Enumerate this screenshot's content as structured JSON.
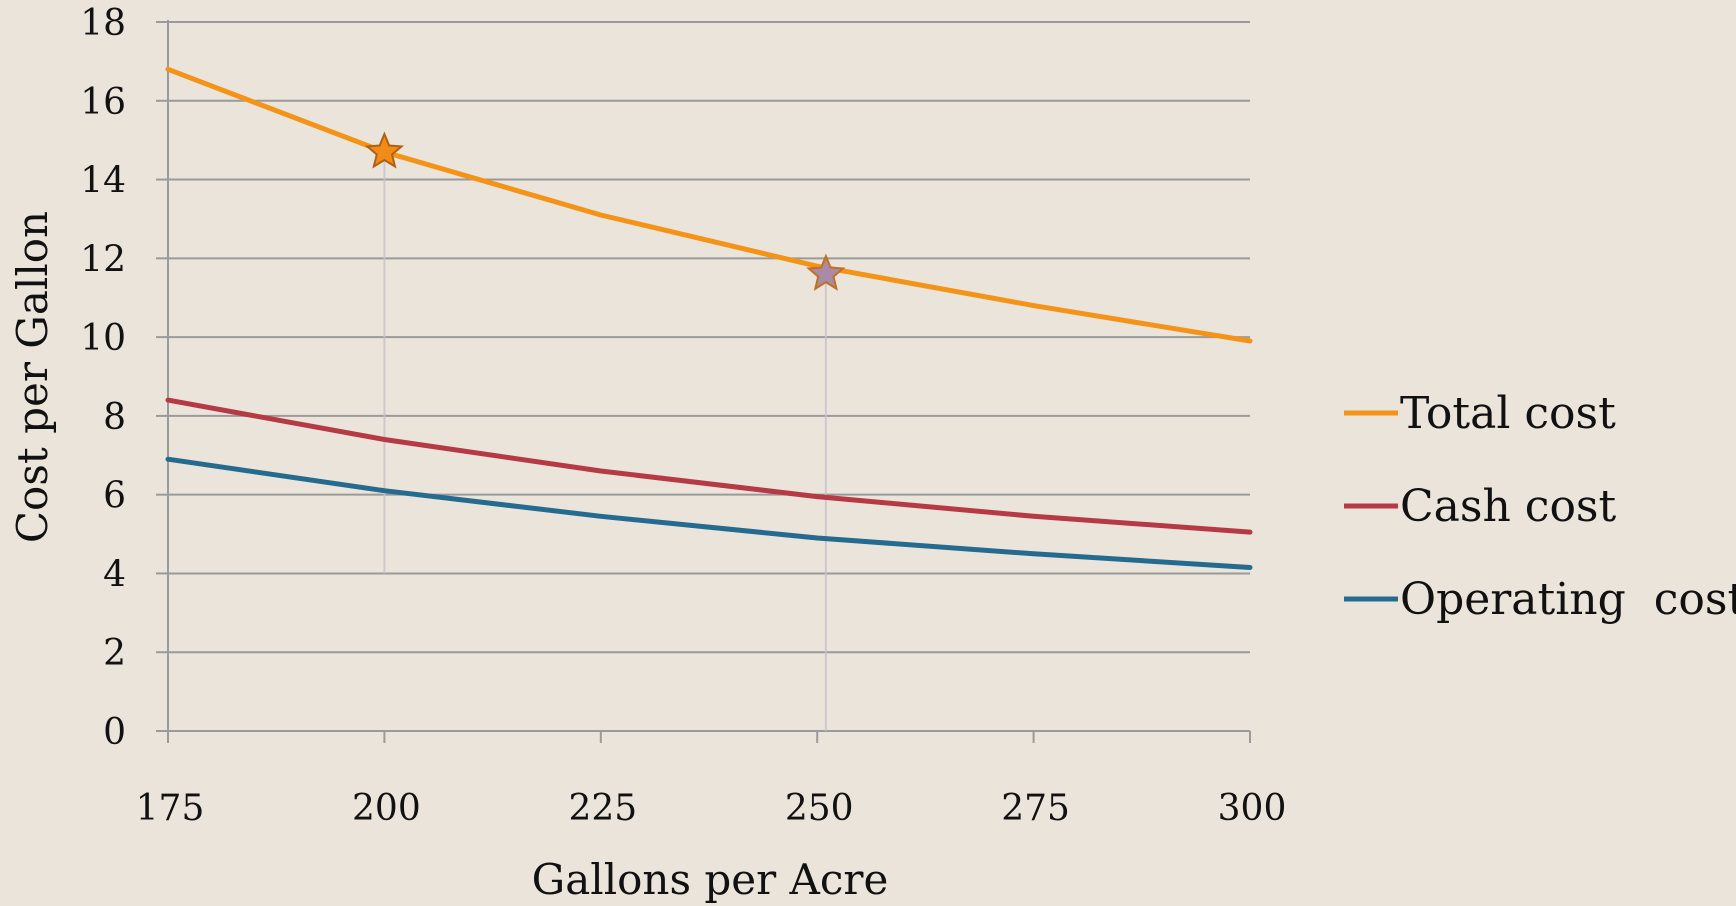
{
  "chart_data": {
    "type": "line",
    "xlabel": "Gallons per Acre",
    "ylabel": "Cost per Gallon",
    "x": [
      175,
      200,
      225,
      250,
      275,
      300
    ],
    "x_ticks": [
      "175",
      "200",
      "225",
      "250",
      "275",
      "300"
    ],
    "y_ticks": [
      "0",
      "2",
      "4",
      "6",
      "8",
      "10",
      "12",
      "14",
      "16",
      "18"
    ],
    "ylim": [
      0,
      18
    ],
    "xlim": [
      175,
      300
    ],
    "grid": true,
    "legend_position": "right",
    "series": [
      {
        "name": "Total cost",
        "color": "#f39419",
        "values": [
          16.8,
          14.7,
          13.1,
          11.8,
          10.8,
          9.9
        ]
      },
      {
        "name": "Cash cost",
        "color": "#b53a45",
        "values": [
          8.4,
          7.4,
          6.6,
          5.95,
          5.45,
          5.05
        ]
      },
      {
        "name": "Operating  cost",
        "color": "#246b8f",
        "values": [
          6.9,
          6.1,
          5.45,
          4.9,
          4.5,
          4.15
        ]
      }
    ],
    "annotations": {
      "threshold_line": {
        "y": 11.6,
        "color": "#9b7fb3"
      },
      "markers": [
        {
          "x": 200,
          "y": 14.7,
          "shape": "star",
          "color": "#f08c17",
          "stroke": "#b06010"
        },
        {
          "x": 251,
          "y": 11.6,
          "shape": "star",
          "color": "#a98aa8",
          "stroke": "#c0701e"
        }
      ],
      "drop_lines": [
        {
          "x": 200,
          "from_y": 14.7,
          "to_y": 4
        },
        {
          "x": 251,
          "from_y": 11.6,
          "to_y": 0
        }
      ]
    }
  }
}
